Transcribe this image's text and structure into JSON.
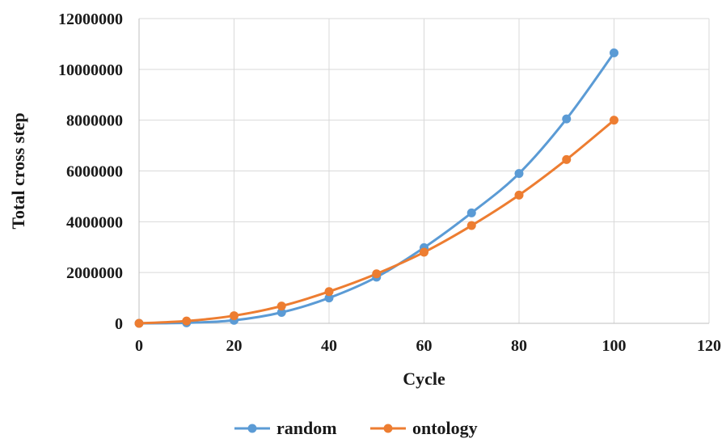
{
  "chart_data": {
    "type": "line",
    "title": "",
    "xlabel": "Cycle",
    "ylabel": "Total cross step",
    "xlim": [
      0,
      120
    ],
    "ylim": [
      0,
      12000000
    ],
    "x_ticks": [
      0,
      20,
      40,
      60,
      80,
      100,
      120
    ],
    "y_ticks": [
      0,
      2000000,
      4000000,
      6000000,
      8000000,
      10000000,
      12000000
    ],
    "x_tick_labels": [
      "0",
      "20",
      "40",
      "60",
      "80",
      "100",
      "120"
    ],
    "y_tick_labels": [
      "0",
      "2000000",
      "4000000",
      "6000000",
      "8000000",
      "10000000",
      "12000000"
    ],
    "grid": true,
    "smooth": true,
    "markers": true,
    "legend_position": "bottom",
    "x": [
      0,
      10,
      20,
      30,
      40,
      50,
      60,
      70,
      80,
      90,
      100
    ],
    "series": [
      {
        "name": "random",
        "color": "#5b9bd5",
        "values": [
          0,
          20000,
          120000,
          430000,
          1000000,
          1820000,
          2980000,
          4350000,
          5900000,
          8050000,
          10650000
        ]
      },
      {
        "name": "ontology",
        "color": "#ed7d31",
        "values": [
          0,
          90000,
          300000,
          680000,
          1250000,
          1950000,
          2800000,
          3850000,
          5050000,
          6450000,
          8000000
        ]
      }
    ]
  }
}
